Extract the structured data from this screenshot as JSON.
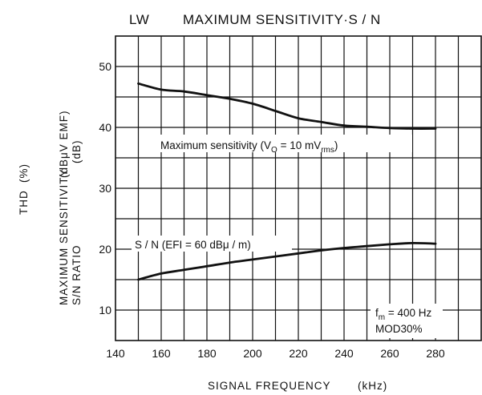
{
  "chart_data": {
    "type": "line",
    "title_band": "LW",
    "title": "MAXIMUM SENSITIVITY·S / N",
    "xlabel": "SIGNAL FREQUENCY",
    "xlabel_unit": "(kHz)",
    "ylabel_thd": "THD",
    "ylabel_thd_unit": "(%)",
    "ylabel_line1": "MAXIMUM SENSITIVITY",
    "ylabel_line2": "S/N RATIO",
    "ylabel_unit1": "(dBμV EMF)",
    "ylabel_unit2": "(dB)",
    "xlim": [
      140,
      300
    ],
    "ylim": [
      5,
      55
    ],
    "x_ticks": [
      140,
      160,
      180,
      200,
      220,
      240,
      260,
      280
    ],
    "y_ticks": [
      10,
      20,
      30,
      40,
      50
    ],
    "grid": true,
    "series": [
      {
        "label_main": "Maximum sensitivity (V",
        "label_sub1": "O",
        "label_mid": " = 10 mV",
        "label_sub2": "rms",
        "label_end": ")",
        "x": [
          150,
          160,
          170,
          180,
          190,
          200,
          210,
          220,
          230,
          240,
          250,
          260,
          270,
          280
        ],
        "y": [
          47.2,
          46.2,
          45.9,
          45.3,
          44.7,
          43.9,
          42.7,
          41.5,
          40.9,
          40.3,
          40.1,
          39.9,
          39.8,
          39.8
        ]
      },
      {
        "label_main": "S / N (EFI = 60 dBμ / m)",
        "x": [
          150,
          160,
          170,
          180,
          190,
          200,
          210,
          220,
          230,
          240,
          250,
          260,
          270,
          280
        ],
        "y": [
          15.0,
          16.0,
          16.6,
          17.2,
          17.8,
          18.3,
          18.8,
          19.3,
          19.8,
          20.2,
          20.5,
          20.8,
          21.0,
          20.9
        ]
      }
    ],
    "annotations": {
      "fm_main": "f",
      "fm_sub": "m",
      "fm_value": " = 400 Hz",
      "mod": "MOD30%"
    }
  }
}
